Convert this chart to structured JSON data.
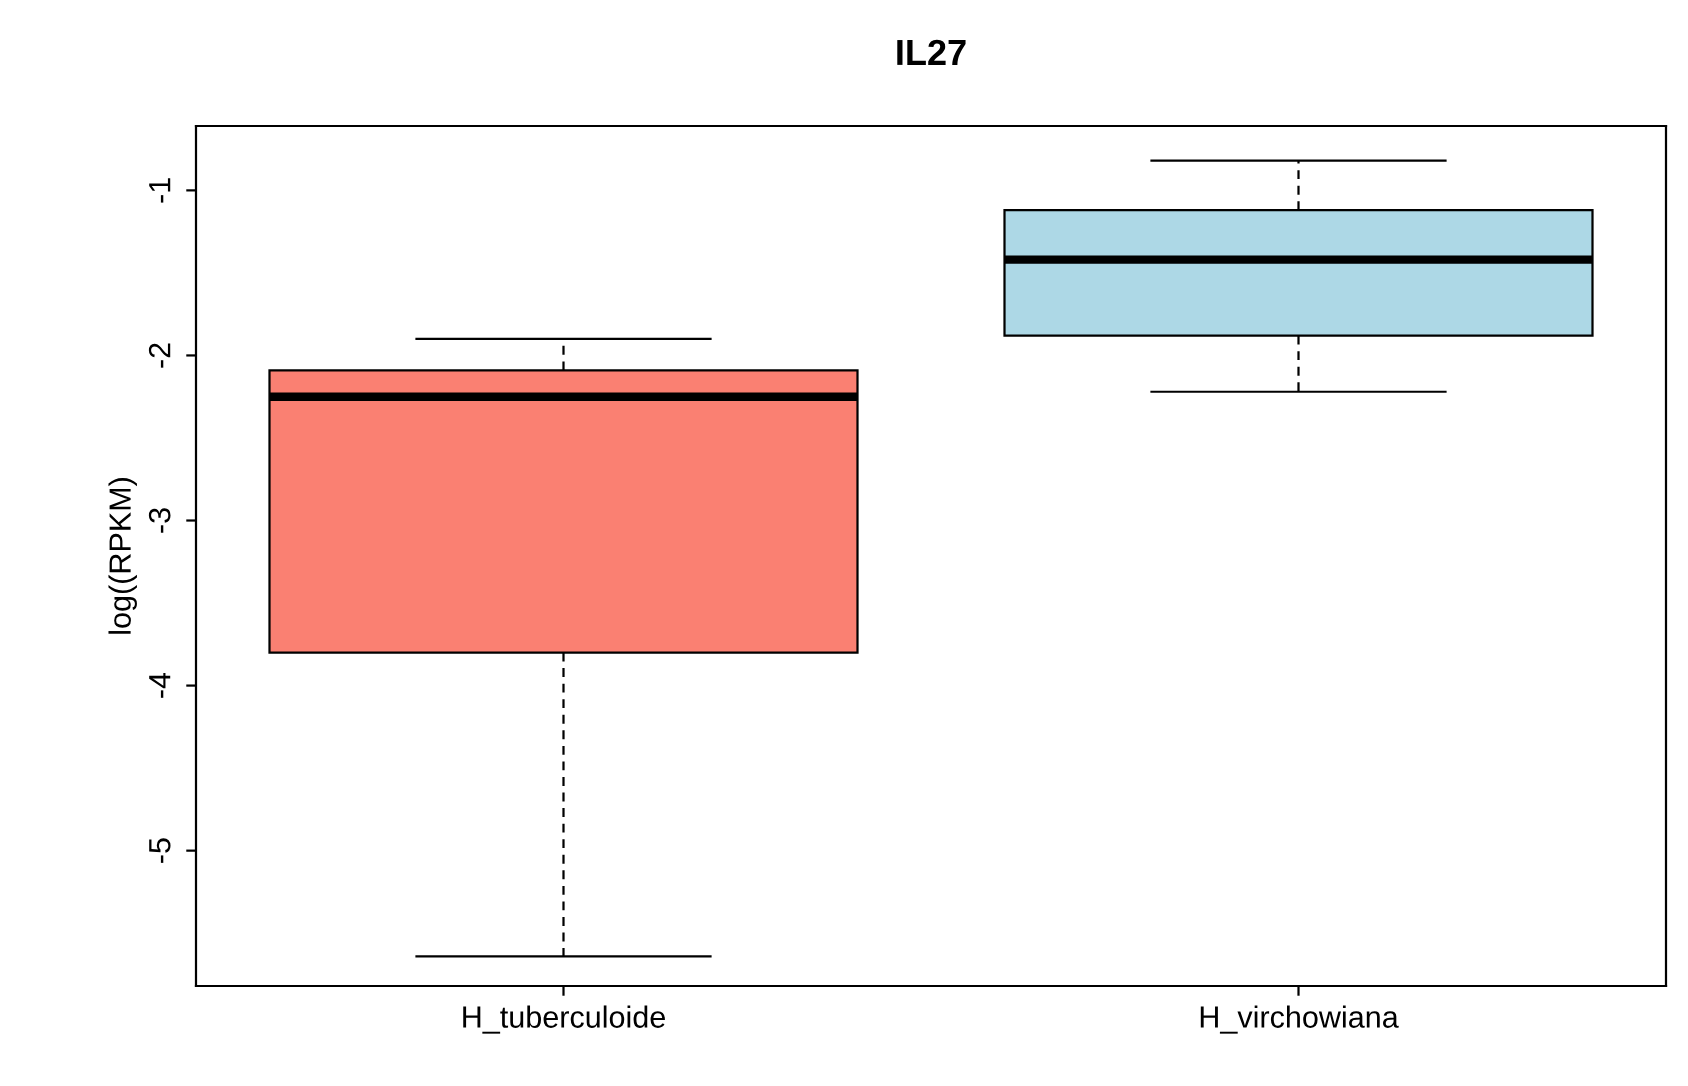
{
  "chart_data": {
    "type": "box",
    "title": "IL27",
    "ylabel": "log((RPKM)",
    "categories": [
      "H_tuberculoide",
      "H_virchowiana"
    ],
    "colors": [
      "#fa8072",
      "#add8e6"
    ],
    "boxes": [
      {
        "low": -5.64,
        "q1": -3.8,
        "median": -2.25,
        "q3": -2.09,
        "high": -1.9
      },
      {
        "low": -2.22,
        "q1": -1.88,
        "median": -1.42,
        "q3": -1.12,
        "high": -0.82
      }
    ],
    "ylim": [
      -5.82,
      -0.61
    ],
    "yticks": [
      -5,
      -4,
      -3,
      -2,
      -1
    ],
    "grid": false,
    "legend": false
  }
}
